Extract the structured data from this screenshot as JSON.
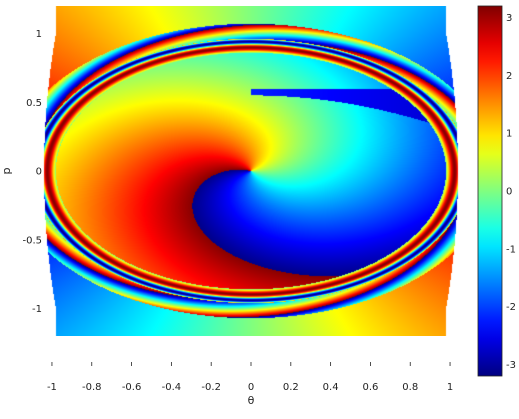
{
  "chart_data": {
    "type": "heatmap",
    "title": "",
    "xlabel": "θ",
    "ylabel": "p",
    "xlim": [
      -1.05,
      1.05
    ],
    "ylim": [
      -1.2,
      1.2
    ],
    "x_ticks": [
      -1,
      -0.8,
      -0.6,
      -0.4,
      -0.2,
      0,
      0.2,
      0.4,
      0.6,
      0.8,
      1
    ],
    "x_tick_labels": [
      "-1",
      "-0.8",
      "-0.6",
      "-0.4",
      "-0.2",
      "0",
      "0.2",
      "0.4",
      "0.6",
      "0.8",
      "1"
    ],
    "y_ticks": [
      1,
      0.5,
      0,
      -0.5,
      -1
    ],
    "y_tick_labels": [
      "1",
      "0.5",
      "0",
      "-0.5",
      "-1"
    ],
    "colorbar": {
      "colormap": "jet",
      "range": [
        -3.2,
        3.2
      ],
      "ticks": [
        3,
        2,
        1,
        0,
        -1,
        -2,
        -3
      ],
      "tick_labels": [
        "3",
        "2",
        "1",
        "0",
        "-1",
        "-2",
        "-3"
      ]
    },
    "grid": false,
    "colors": {
      "dark_blue": "#00008f",
      "blue": "#0000ff",
      "cyan": "#00ffff",
      "yellow": "#ffff00",
      "red": "#ff0000",
      "dark_red": "#800000"
    }
  }
}
